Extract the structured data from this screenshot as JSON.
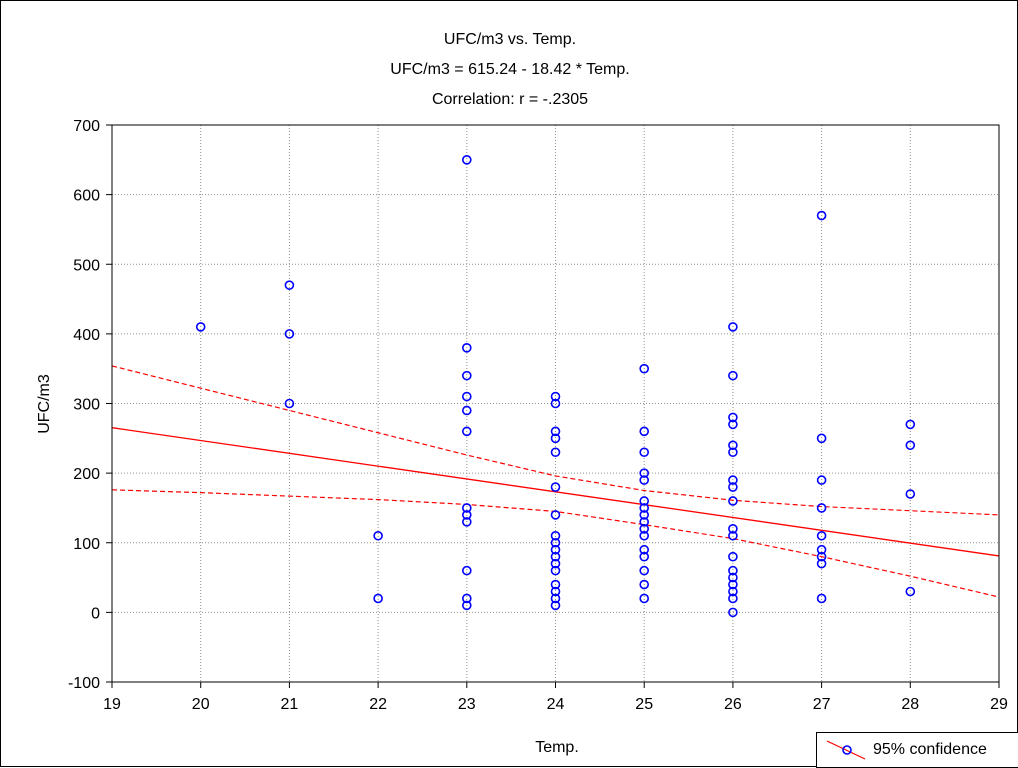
{
  "chart_data": {
    "type": "scatter",
    "title": "UFC/m3 vs. Temp.",
    "subtitle": "UFC/m3 = 615.24 - 18.42  * Temp.",
    "correlation": "Correlation: r = -.2305",
    "xlabel": "Temp.",
    "ylabel": "UFC/m3",
    "xlim": [
      19,
      29
    ],
    "ylim": [
      -100,
      700
    ],
    "xticks": [
      "19",
      "20",
      "21",
      "22",
      "23",
      "24",
      "25",
      "26",
      "27",
      "28",
      "29"
    ],
    "yticks": [
      "-100",
      "0",
      "100",
      "200",
      "300",
      "400",
      "500",
      "600",
      "700"
    ],
    "grid": true,
    "legend": {
      "label": "95% confidence",
      "position": "bottom-right"
    },
    "colors": {
      "points": "#0000ff",
      "fit": "#ff0000"
    },
    "regression": {
      "intercept": 615.24,
      "slope": -18.42
    },
    "confidence_band": {
      "upper": [
        [
          19,
          354
        ],
        [
          20,
          322
        ],
        [
          21,
          290
        ],
        [
          22,
          258
        ],
        [
          23,
          226
        ],
        [
          24,
          196
        ],
        [
          25,
          175
        ],
        [
          26,
          161
        ],
        [
          27,
          152
        ],
        [
          28,
          146
        ],
        [
          29,
          140
        ]
      ],
      "lower": [
        [
          19,
          176
        ],
        [
          20,
          172
        ],
        [
          21,
          167
        ],
        [
          22,
          162
        ],
        [
          23,
          155
        ],
        [
          24,
          145
        ],
        [
          25,
          126
        ],
        [
          26,
          106
        ],
        [
          27,
          80
        ],
        [
          28,
          52
        ],
        [
          29,
          22
        ]
      ]
    },
    "points": [
      [
        20,
        410
      ],
      [
        21,
        470
      ],
      [
        21,
        400
      ],
      [
        21,
        300
      ],
      [
        22,
        110
      ],
      [
        22,
        20
      ],
      [
        23,
        650
      ],
      [
        23,
        380
      ],
      [
        23,
        340
      ],
      [
        23,
        310
      ],
      [
        23,
        290
      ],
      [
        23,
        260
      ],
      [
        23,
        150
      ],
      [
        23,
        140
      ],
      [
        23,
        130
      ],
      [
        23,
        60
      ],
      [
        23,
        20
      ],
      [
        23,
        10
      ],
      [
        24,
        310
      ],
      [
        24,
        300
      ],
      [
        24,
        260
      ],
      [
        24,
        250
      ],
      [
        24,
        230
      ],
      [
        24,
        180
      ],
      [
        24,
        140
      ],
      [
        24,
        110
      ],
      [
        24,
        100
      ],
      [
        24,
        90
      ],
      [
        24,
        80
      ],
      [
        24,
        70
      ],
      [
        24,
        60
      ],
      [
        24,
        40
      ],
      [
        24,
        30
      ],
      [
        24,
        20
      ],
      [
        24,
        10
      ],
      [
        25,
        350
      ],
      [
        25,
        260
      ],
      [
        25,
        230
      ],
      [
        25,
        200
      ],
      [
        25,
        190
      ],
      [
        25,
        160
      ],
      [
        25,
        150
      ],
      [
        25,
        140
      ],
      [
        25,
        130
      ],
      [
        25,
        120
      ],
      [
        25,
        110
      ],
      [
        25,
        90
      ],
      [
        25,
        80
      ],
      [
        25,
        60
      ],
      [
        25,
        40
      ],
      [
        25,
        20
      ],
      [
        26,
        410
      ],
      [
        26,
        340
      ],
      [
        26,
        280
      ],
      [
        26,
        270
      ],
      [
        26,
        240
      ],
      [
        26,
        230
      ],
      [
        26,
        190
      ],
      [
        26,
        180
      ],
      [
        26,
        160
      ],
      [
        26,
        120
      ],
      [
        26,
        110
      ],
      [
        26,
        80
      ],
      [
        26,
        60
      ],
      [
        26,
        50
      ],
      [
        26,
        40
      ],
      [
        26,
        30
      ],
      [
        26,
        20
      ],
      [
        26,
        0
      ],
      [
        27,
        570
      ],
      [
        27,
        250
      ],
      [
        27,
        190
      ],
      [
        27,
        150
      ],
      [
        27,
        110
      ],
      [
        27,
        90
      ],
      [
        27,
        80
      ],
      [
        27,
        70
      ],
      [
        27,
        20
      ],
      [
        28,
        270
      ],
      [
        28,
        240
      ],
      [
        28,
        170
      ],
      [
        28,
        30
      ]
    ]
  }
}
